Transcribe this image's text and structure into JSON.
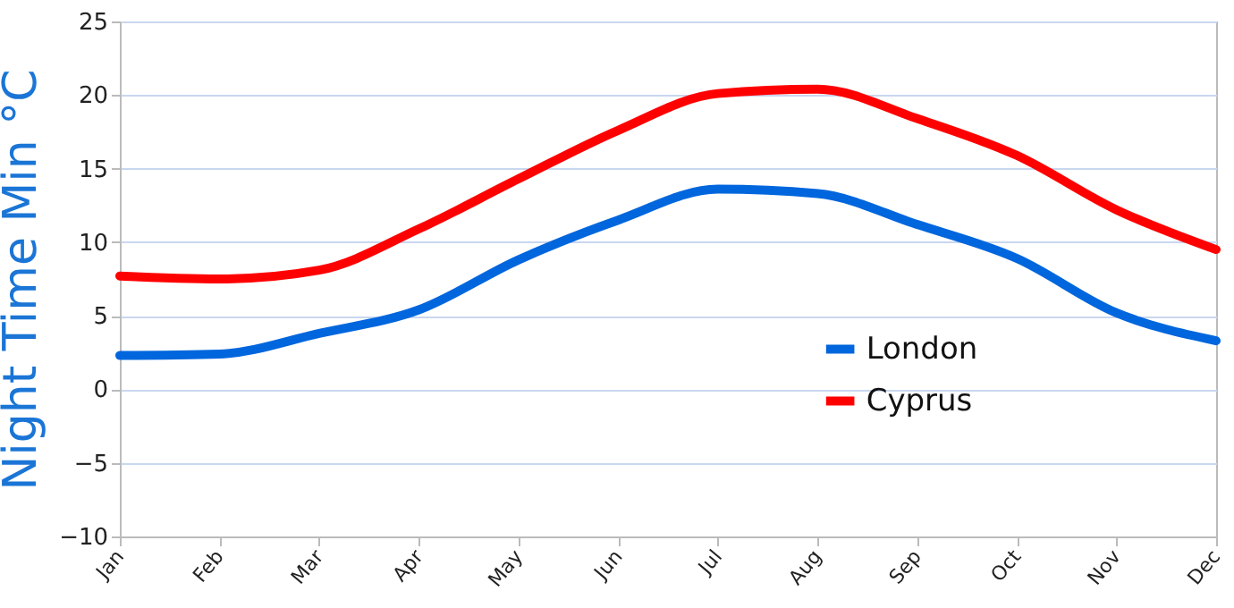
{
  "chart_data": {
    "type": "line",
    "ylabel": "Night Time Min °C",
    "categories": [
      "Jan",
      "Feb",
      "Mar",
      "Apr",
      "May",
      "Jun",
      "Jul",
      "Aug",
      "Sep",
      "Oct",
      "Nov",
      "Dec"
    ],
    "series": [
      {
        "name": "London",
        "color": "#0066dd",
        "values": [
          2.3,
          2.4,
          3.8,
          5.4,
          8.8,
          11.5,
          13.6,
          13.3,
          11.2,
          8.9,
          5.2,
          3.3
        ]
      },
      {
        "name": "Cyprus",
        "color": "#ff0000",
        "values": [
          7.7,
          7.5,
          8.1,
          10.9,
          14.3,
          17.6,
          20.1,
          20.4,
          18.4,
          15.9,
          12.2,
          9.5
        ]
      }
    ],
    "ylim": [
      -10,
      25
    ],
    "yticks": [
      -10,
      -5,
      0,
      5,
      10,
      15,
      20,
      25
    ],
    "grid": "y",
    "legend": "bottom right",
    "marker": "none",
    "line_style": "solid"
  }
}
